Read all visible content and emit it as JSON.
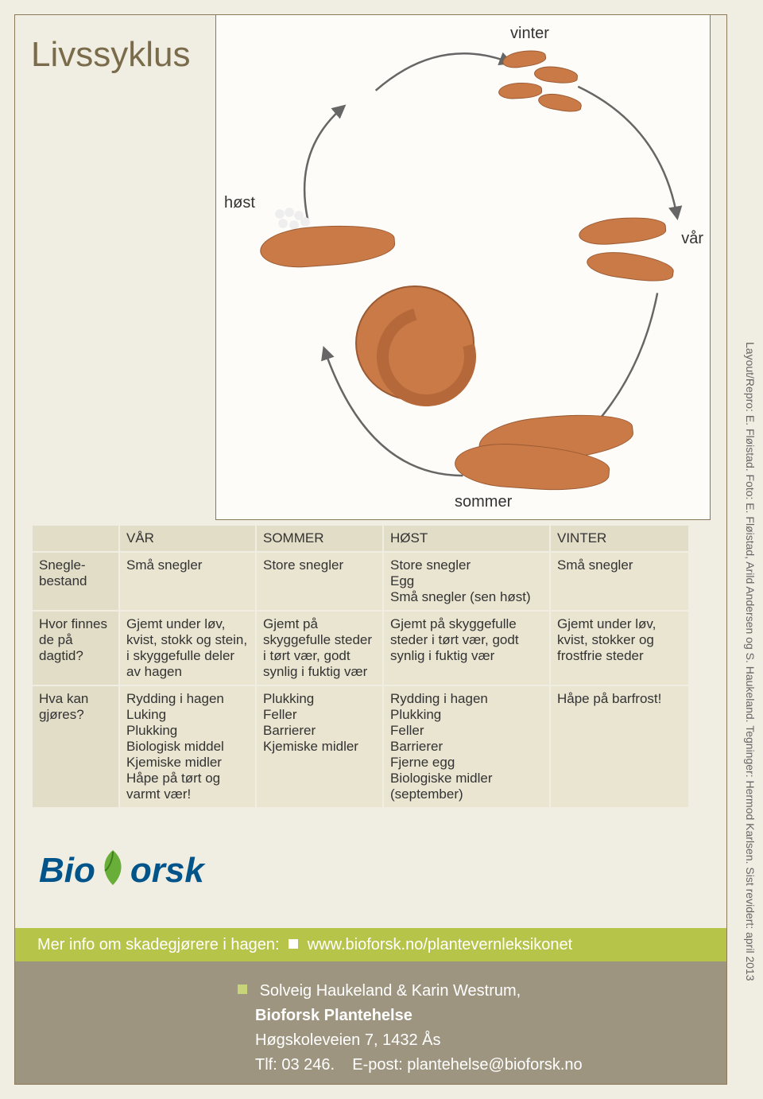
{
  "title": "Livssyklus",
  "diagram": {
    "labels": {
      "winter": "vinter",
      "spring": "vår",
      "summer": "sommer",
      "autumn": "høst"
    },
    "label_fontsize": 20,
    "arrow_color": "#666666",
    "background_color": "#fdfcf8",
    "border_color": "#8a7a5a",
    "slug_fill": "#c97a47",
    "slug_stroke": "#9a5a33",
    "egg_fill": "#eeeeee"
  },
  "table": {
    "header_bg": "#e1ddc7",
    "body_bg": "#e9e5d1",
    "border_color": "#f0ede3",
    "fontsize": 17,
    "columns": [
      "VÅR",
      "SOMMER",
      "HØST",
      "VINTER"
    ],
    "rows": [
      {
        "label": "Snegle-bestand",
        "cells": [
          "Små snegler",
          "Store snegler",
          "Store snegler\nEgg\nSmå snegler (sen høst)",
          "Små snegler"
        ]
      },
      {
        "label": "Hvor finnes de på dagtid?",
        "cells": [
          "Gjemt under løv, kvist, stokk og stein, i skyggefulle deler av hagen",
          "Gjemt på skyggefulle steder i tørt vær, godt synlig i fuktig vær",
          "Gjemt på skyggefulle steder i tørt vær, godt synlig i fuktig vær",
          "Gjemt under løv, kvist, stokker og frostfrie steder"
        ]
      },
      {
        "label": "Hva kan gjøres?",
        "cells": [
          "Rydding i hagen\nLuking\nPlukking\nBiologisk middel\nKjemiske midler\nHåpe på tørt og varmt vær!",
          "Plukking\nFeller\nBarrierer\nKjemiske midler",
          "Rydding i hagen\nPlukking\nFeller\nBarrierer\nFjerne egg\nBiologiske midler (september)",
          "Håpe på barfrost!"
        ]
      }
    ]
  },
  "logo": {
    "text_prefix": "Bio",
    "text_suffix": "orsk",
    "color_primary": "#00548a",
    "color_leaf": "#6aae3a"
  },
  "infobar": {
    "text_before": "Mer info om skadegjørere i hagen:",
    "link": "www.bioforsk.no/plantevernleksikonet",
    "bg": "#b7c44a",
    "fontsize": 20
  },
  "footer": {
    "bg": "#9d957f",
    "authors": "Solveig Haukeland & Karin Westrum,",
    "org": "Bioforsk Plantehelse",
    "address": "Høgskoleveien 7, 1432 Ås",
    "phone_label": "Tlf: 03 246.",
    "email_label": "E-post:",
    "email": "plantehelse@bioforsk.no",
    "fontsize": 20
  },
  "side_credit": "Layout/Repro: E. Fløistad.  Foto:  E. Fløistad, Arild Andersen og S. Haukeland. Tegninger: Hermod Karlsen.  Sist revidert: april 2013"
}
